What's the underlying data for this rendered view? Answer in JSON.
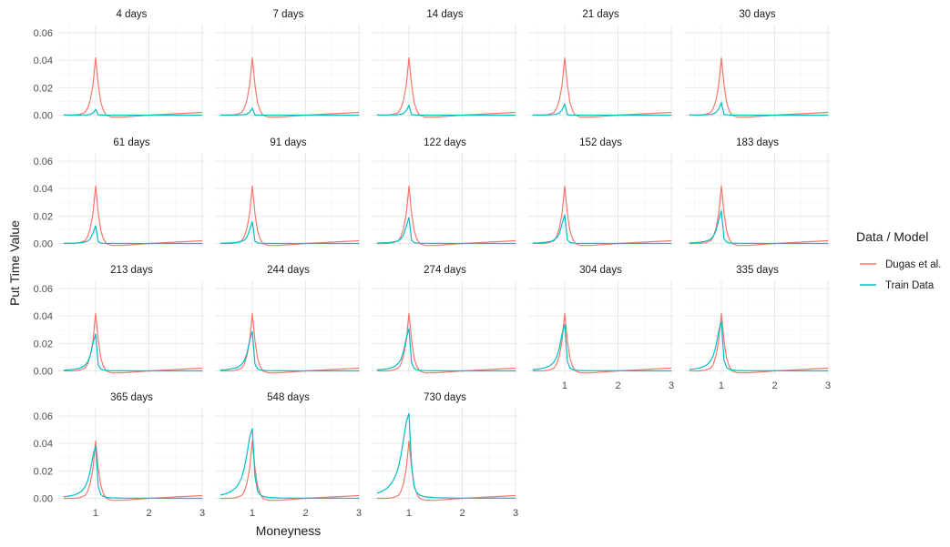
{
  "chart_data": {
    "type": "line",
    "facet_titles": [
      "4 days",
      "7 days",
      "14 days",
      "21 days",
      "30 days",
      "61 days",
      "91 days",
      "122 days",
      "152 days",
      "183 days",
      "213 days",
      "244 days",
      "274 days",
      "304 days",
      "335 days",
      "365 days",
      "548 days",
      "730 days"
    ],
    "xlabel": "Moneyness",
    "ylabel": "Put Time Value",
    "xlim": [
      0.3,
      3.05
    ],
    "ylim": [
      -0.003,
      0.066
    ],
    "x_ticks": [
      1,
      2,
      3
    ],
    "x_tick_labels": [
      "1",
      "2",
      "3"
    ],
    "y_ticks": [
      0,
      0.02,
      0.04,
      0.06
    ],
    "y_tick_labels": [
      "0.00",
      "0.02",
      "0.04",
      "0.06"
    ],
    "grid": true,
    "legend": {
      "title": "Data / Model",
      "placement": "right",
      "entries": [
        "Dugas et al.",
        "Train Data"
      ]
    },
    "series_colors": {
      "Dugas et al.": "#F8766D",
      "Train Data": "#00BFC4"
    },
    "dugas_x": [
      0.4,
      0.6,
      0.7,
      0.8,
      0.85,
      0.9,
      0.95,
      1.0,
      1.05,
      1.1,
      1.15,
      1.2,
      1.3,
      1.5,
      2.0,
      2.5,
      3.0
    ],
    "dugas_y": [
      0.0,
      0.0,
      0.0005,
      0.002,
      0.005,
      0.011,
      0.022,
      0.042,
      0.022,
      0.009,
      0.003,
      0.0,
      -0.0015,
      -0.0015,
      0.0,
      0.001,
      0.002
    ],
    "train_x": [
      0.4,
      0.5,
      0.6,
      0.7,
      0.75,
      0.8,
      0.85,
      0.9,
      0.95,
      1.0,
      1.05,
      1.1,
      1.15,
      1.2,
      1.3,
      1.5,
      2.0,
      2.5,
      3.0
    ],
    "train_peaks": [
      0.004,
      0.005,
      0.007,
      0.008,
      0.009,
      0.013,
      0.016,
      0.019,
      0.021,
      0.024,
      0.027,
      0.029,
      0.031,
      0.034,
      0.036,
      0.038,
      0.051,
      0.062
    ],
    "dugas_peaks": [
      0.042,
      0.042,
      0.042,
      0.042,
      0.042,
      0.042,
      0.042,
      0.042,
      0.042,
      0.042,
      0.042,
      0.042,
      0.042,
      0.042,
      0.042,
      0.042,
      0.042,
      0.042
    ]
  }
}
